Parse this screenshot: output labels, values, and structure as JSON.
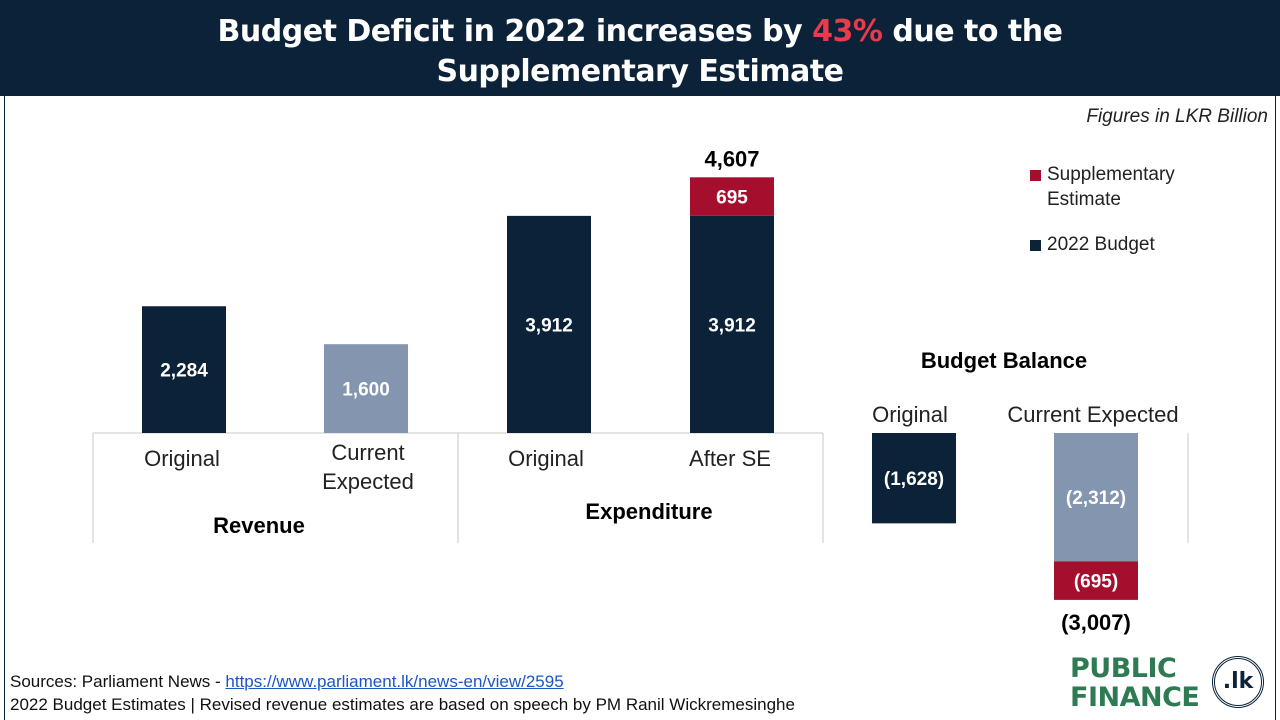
{
  "header": {
    "title_part1": "Budget Deficit in 2022 increases by ",
    "title_highlight": "43%",
    "title_part2": " due to the",
    "title_line2": "Supplementary  Estimate"
  },
  "note": "Figures in LKR Billion",
  "legend": [
    {
      "label": "Supplementary Estimate",
      "color": "#a50f2d"
    },
    {
      "label": "2022 Budget",
      "color": "#0b2239"
    }
  ],
  "colors": {
    "navy": "#0b2239",
    "red": "#a50f2d",
    "grey": "#8496af",
    "title_highlight": "#ea3a4c",
    "logo_green": "#2e7a52"
  },
  "chart_data": [
    {
      "type": "bar",
      "group": "Revenue",
      "categories": [
        "Original",
        "Current Expected"
      ],
      "series": [
        {
          "name": "2022 Budget",
          "values": [
            2284,
            1600
          ],
          "labels": [
            "2,284",
            "1,600"
          ]
        }
      ]
    },
    {
      "type": "bar",
      "group": "Expenditure",
      "categories": [
        "Original",
        "After SE"
      ],
      "series": [
        {
          "name": "2022 Budget",
          "values": [
            3912,
            3912
          ],
          "labels": [
            "3,912",
            "3,912"
          ]
        },
        {
          "name": "Supplementary Estimate",
          "values": [
            0,
            695
          ],
          "labels": [
            "",
            "695"
          ]
        }
      ],
      "totals": [
        "",
        "4,607"
      ]
    },
    {
      "type": "bar",
      "group": "Budget Balance",
      "categories": [
        "Original",
        "Current Expected"
      ],
      "series": [
        {
          "name": "2022 Budget",
          "values": [
            -1628,
            -2312
          ],
          "labels": [
            "(1,628)",
            "(2,312)"
          ]
        },
        {
          "name": "Supplementary Estimate",
          "values": [
            0,
            -695
          ],
          "labels": [
            "",
            "(695)"
          ]
        }
      ],
      "totals": [
        "",
        "(3,007)"
      ]
    }
  ],
  "footer": {
    "sources_prefix": "Sources: Parliament News - ",
    "sources_link": "https://www.parliament.lk/news-en/view/2595",
    "line2": "2022 Budget Estimates | Revised revenue estimates are based on speech by PM Ranil Wickremesinghe"
  },
  "logo": {
    "line1": "PUBLIC",
    "line2": "FINANCE",
    "badge": ".lk"
  }
}
